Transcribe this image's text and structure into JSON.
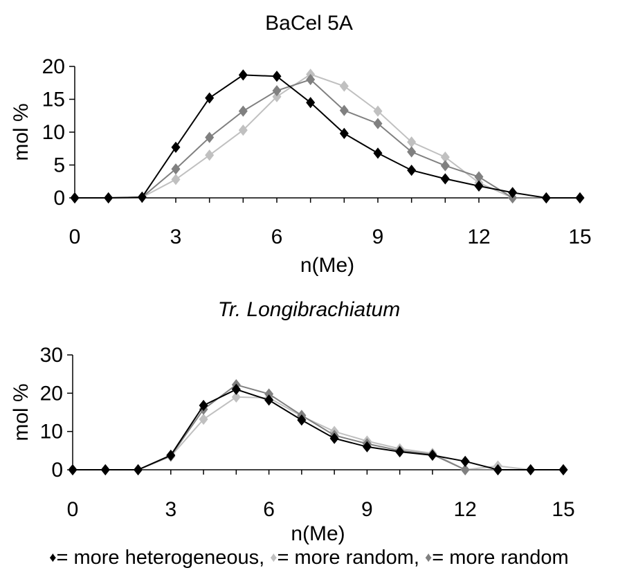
{
  "colors": {
    "series_1": "#000000",
    "series_2": "#c0c0c0",
    "series_3": "#808080"
  },
  "legend": {
    "entry_1": {
      "marker": "♦",
      "text": "= more heterogeneous,"
    },
    "entry_2": {
      "marker": "♦",
      "text": "= more random,"
    },
    "entry_3": {
      "marker": "♦",
      "text": "= more random"
    }
  },
  "chart_data": [
    {
      "type": "line",
      "title": "BaCel 5A",
      "title_style": "normal",
      "xlabel": "n(Me)",
      "ylabel": "mol %",
      "xlim": [
        0,
        15
      ],
      "ylim": [
        0,
        20
      ],
      "xticks": [
        0,
        3,
        6,
        9,
        12,
        15
      ],
      "yticks": [
        0,
        5,
        10,
        15,
        20
      ],
      "grid": false,
      "x": [
        0,
        1,
        2,
        3,
        4,
        5,
        6,
        7,
        8,
        9,
        10,
        11,
        12,
        13,
        14,
        15
      ],
      "series": [
        {
          "color_key": "series_2",
          "values": [
            0,
            0,
            0.1,
            2.8,
            6.5,
            10.3,
            15.4,
            18.8,
            17.0,
            13.2,
            8.5,
            6.2,
            2.3,
            0,
            0,
            0
          ]
        },
        {
          "color_key": "series_3",
          "values": [
            0,
            0,
            0.1,
            4.4,
            9.2,
            13.2,
            16.3,
            18.0,
            13.3,
            11.3,
            7.0,
            4.9,
            3.2,
            0,
            0,
            0
          ]
        },
        {
          "color_key": "series_1",
          "values": [
            0,
            0,
            0.1,
            7.7,
            15.2,
            18.7,
            18.5,
            14.5,
            9.8,
            6.8,
            4.2,
            2.9,
            1.8,
            0.8,
            0,
            0
          ]
        }
      ]
    },
    {
      "type": "line",
      "title": "Tr. Longibrachiatum",
      "title_style": "italic",
      "xlabel": "n(Me)",
      "ylabel": "mol %",
      "xlim": [
        0,
        15
      ],
      "ylim": [
        0,
        30
      ],
      "xticks": [
        0,
        3,
        6,
        9,
        12,
        15
      ],
      "yticks": [
        0,
        10,
        20,
        30
      ],
      "grid": false,
      "x": [
        0,
        1,
        2,
        3,
        4,
        5,
        6,
        7,
        8,
        9,
        10,
        11,
        12,
        13,
        14,
        15
      ],
      "series": [
        {
          "color_key": "series_2",
          "values": [
            0,
            0,
            0,
            3.5,
            13.2,
            19.0,
            18.8,
            14.0,
            10.0,
            7.5,
            5.5,
            4.3,
            0,
            1.0,
            0,
            0
          ]
        },
        {
          "color_key": "series_3",
          "values": [
            0,
            0,
            0,
            3.6,
            15.8,
            22.2,
            19.8,
            14.2,
            9.0,
            6.8,
            5.0,
            4.0,
            0,
            0,
            0,
            0
          ]
        },
        {
          "color_key": "series_1",
          "values": [
            0,
            0,
            0,
            3.8,
            16.8,
            21.0,
            18.2,
            13.0,
            8.2,
            6.0,
            4.7,
            3.8,
            2.2,
            0,
            0,
            0
          ]
        }
      ]
    }
  ]
}
